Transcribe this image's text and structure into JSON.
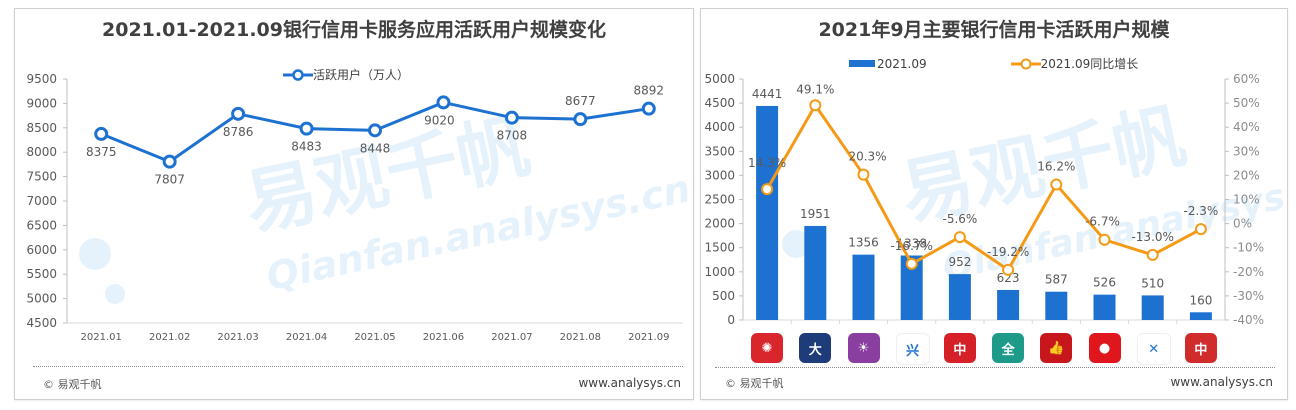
{
  "left": {
    "title": "2021.01-2021.09银行信用卡服务应用活跃用户规模变化",
    "legend": "活跃用户（万人）",
    "footer_left": "© 易观千帆",
    "footer_right": "www.analysys.cn",
    "y_ticks": [
      "9500",
      "9000",
      "8500",
      "8000",
      "7500",
      "7000",
      "6500",
      "6000",
      "5500",
      "5000",
      "4500"
    ],
    "x_labels": [
      "2021.01",
      "2021.02",
      "2021.03",
      "2021.04",
      "2021.05",
      "2021.06",
      "2021.07",
      "2021.08",
      "2021.09"
    ],
    "values": [
      "8375",
      "7807",
      "8786",
      "8483",
      "8448",
      "9020",
      "8708",
      "8677",
      "8892"
    ]
  },
  "right": {
    "title": "2021年9月主要银行信用卡活跃用户规模",
    "legend_bar": "2021.09",
    "legend_line": "2021.09同比增长",
    "footer_left": "© 易观千帆",
    "footer_right": "www.analysys.cn",
    "y_left_ticks": [
      "5000",
      "4500",
      "4000",
      "3500",
      "3000",
      "2500",
      "2000",
      "1500",
      "1000",
      "500",
      "0"
    ],
    "y_right_ticks": [
      "60%",
      "50%",
      "40%",
      "30%",
      "20%",
      "10%",
      "0%",
      "-10%",
      "-20%",
      "-30%",
      "-40%"
    ],
    "bar_values": [
      "4441",
      "1951",
      "1356",
      "1338",
      "952",
      "623",
      "587",
      "526",
      "510",
      "160"
    ],
    "growth_values": [
      "14.3%",
      "49.1%",
      "20.3%",
      "-16.7%",
      "-5.6%",
      "-19.2%",
      "16.2%",
      "-6.7%",
      "-13.0%",
      "-2.3%"
    ],
    "app_icons": [
      {
        "name": "app-icon-1",
        "color": "#d9262c",
        "glyph": "✺"
      },
      {
        "name": "app-icon-2",
        "color": "#1f3c7a",
        "glyph": "大"
      },
      {
        "name": "app-icon-3",
        "color": "#8a3fa0",
        "glyph": "☀"
      },
      {
        "name": "app-icon-4",
        "color": "#ffffff",
        "glyph": "兴"
      },
      {
        "name": "app-icon-5",
        "color": "#d42026",
        "glyph": "中"
      },
      {
        "name": "app-icon-6",
        "color": "#1d9a8a",
        "glyph": "全"
      },
      {
        "name": "app-icon-7",
        "color": "#c8161d",
        "glyph": "👍"
      },
      {
        "name": "app-icon-8",
        "color": "#e0161d",
        "glyph": "●"
      },
      {
        "name": "app-icon-9",
        "color": "#ffffff",
        "glyph": "✕"
      },
      {
        "name": "app-icon-10",
        "color": "#d02c2c",
        "glyph": "中"
      }
    ]
  },
  "colors": {
    "line_blue": "#1d72d1",
    "bar_blue": "#1d72d1",
    "line_orange": "#f59a16",
    "watermark": "#e4f1fb"
  },
  "chart_data": [
    {
      "type": "line",
      "title": "2021.01-2021.09银行信用卡服务应用活跃用户规模变化",
      "categories": [
        "2021.01",
        "2021.02",
        "2021.03",
        "2021.04",
        "2021.05",
        "2021.06",
        "2021.07",
        "2021.08",
        "2021.09"
      ],
      "series": [
        {
          "name": "活跃用户（万人）",
          "values": [
            8375,
            7807,
            8786,
            8483,
            8448,
            9020,
            8708,
            8677,
            8892
          ]
        }
      ],
      "xlabel": "",
      "ylabel": "",
      "ylim": [
        4500,
        9500
      ],
      "yticks": [
        4500,
        5000,
        5500,
        6000,
        6500,
        7000,
        7500,
        8000,
        8500,
        9000,
        9500
      ],
      "grid": false,
      "legend_position": "top"
    },
    {
      "type": "bar",
      "title": "2021年9月主要银行信用卡活跃用户规模",
      "categories": [
        "App1",
        "App2",
        "App3",
        "App4",
        "App5",
        "App6",
        "App7",
        "App8",
        "App9",
        "App10"
      ],
      "series": [
        {
          "name": "2021.09",
          "type": "bar",
          "axis": "left",
          "values": [
            4441,
            1951,
            1356,
            1338,
            952,
            623,
            587,
            526,
            510,
            160
          ]
        },
        {
          "name": "2021.09同比增长",
          "type": "line",
          "axis": "right",
          "values": [
            14.3,
            49.1,
            20.3,
            -16.7,
            -5.6,
            -19.2,
            16.2,
            -6.7,
            -13.0,
            -2.3
          ],
          "unit": "%"
        }
      ],
      "ylim_left": [
        0,
        5000
      ],
      "ylim_right": [
        -40,
        60
      ],
      "grid": false,
      "legend_position": "top"
    }
  ]
}
